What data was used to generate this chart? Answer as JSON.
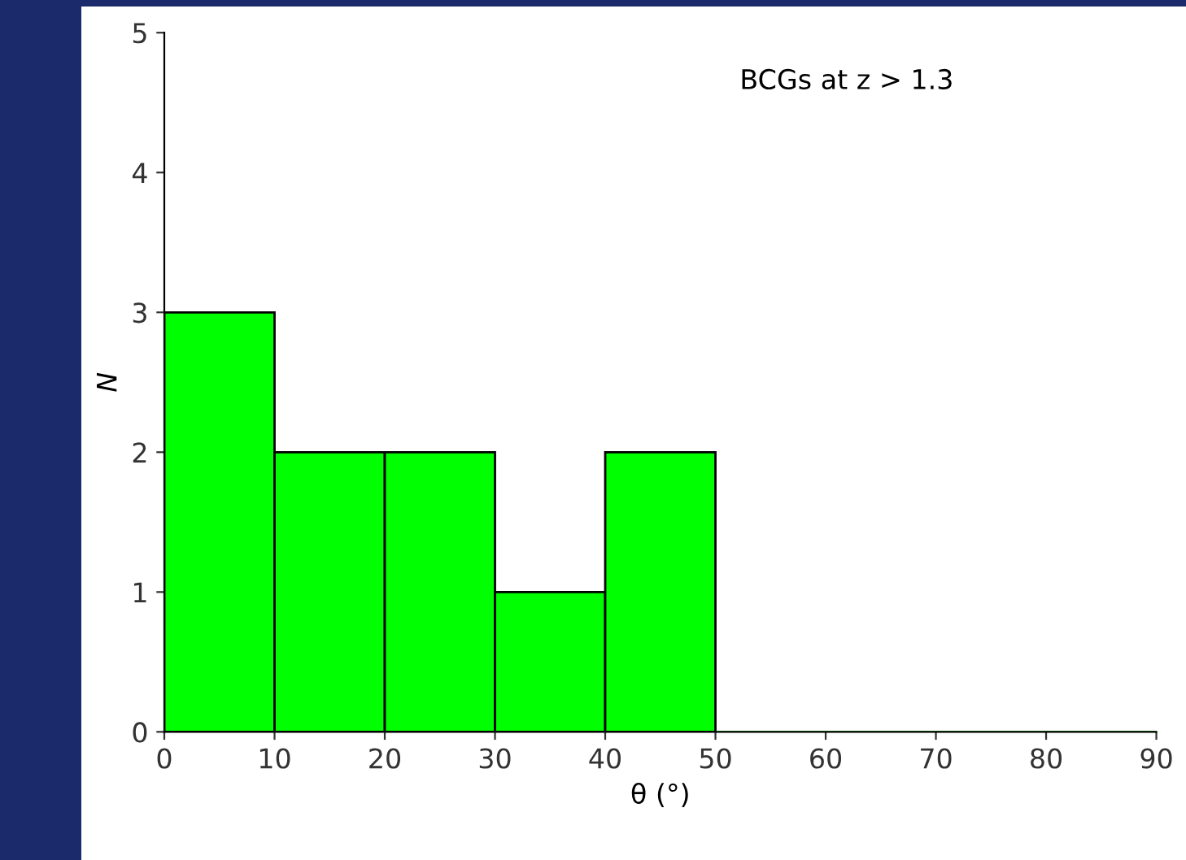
{
  "chart_data": {
    "type": "histogram",
    "xlabel": "θ (°)",
    "ylabel": "N",
    "annotations": [
      "BCGs at z > 1.3"
    ],
    "bins": [
      0,
      10,
      20,
      30,
      40,
      50,
      60,
      70,
      80,
      90
    ],
    "values": [
      3,
      2,
      2,
      1,
      2,
      0,
      0,
      0,
      0
    ],
    "color": "#00ff00",
    "xlim": [
      0,
      90
    ],
    "xticks": [
      0,
      10,
      20,
      30,
      40,
      50,
      60,
      70,
      80,
      90
    ],
    "ylim": [
      0,
      5
    ],
    "yticks": [
      0,
      1,
      2,
      3,
      4,
      5
    ],
    "grid": false
  }
}
